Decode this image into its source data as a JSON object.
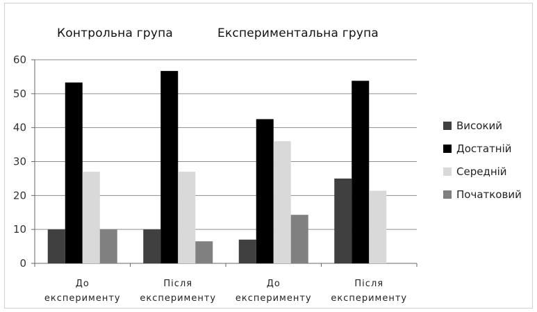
{
  "chart_data": {
    "type": "bar",
    "group_titles": [
      "Контрольна група",
      "Експериментальна група"
    ],
    "categories": [
      [
        "До",
        "експерименту"
      ],
      [
        "Після",
        "експерименту"
      ],
      [
        "До",
        "експерименту"
      ],
      [
        "Після",
        "експерименту"
      ]
    ],
    "series": [
      {
        "name": "Високий",
        "color": "#404040",
        "values": [
          10,
          10,
          7,
          25
        ]
      },
      {
        "name": "Достатній",
        "color": "#000000",
        "values": [
          53.3,
          56.7,
          42.5,
          53.8
        ]
      },
      {
        "name": "Середній",
        "color": "#d9d9d9",
        "values": [
          27,
          27,
          36,
          21.4
        ]
      },
      {
        "name": "Початковий",
        "color": "#808080",
        "values": [
          10,
          6.5,
          14.3,
          0
        ]
      }
    ],
    "ylim": [
      0,
      60
    ],
    "yticks": [
      0,
      10,
      20,
      30,
      40,
      50,
      60
    ],
    "grid": true,
    "legend_position": "right"
  }
}
